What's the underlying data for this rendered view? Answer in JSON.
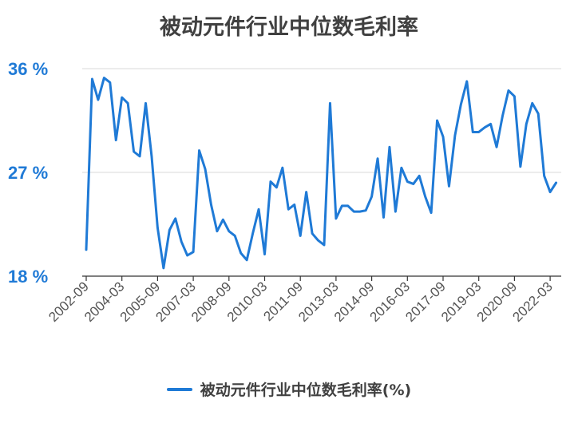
{
  "chart_data": {
    "type": "line",
    "title": "被动元件行业中位数毛利率",
    "ylim": [
      18,
      36
    ],
    "yticks": [
      "18 %",
      "27 %",
      "36 %"
    ],
    "ytick_values": [
      18,
      27,
      36
    ],
    "xticks": [
      "2002-09",
      "2004-03",
      "2005-09",
      "2007-03",
      "2008-09",
      "2010-03",
      "2011-09",
      "2013-03",
      "2014-09",
      "2016-03",
      "2017-09",
      "2019-03",
      "2020-09",
      "2022-03"
    ],
    "grid": "horizontal",
    "legend_position": "bottom",
    "series": [
      {
        "name": "被动元件行业中位数毛利率(%)",
        "color": "#1f7ad6",
        "values": [
          20.3,
          35.1,
          33.3,
          35.2,
          34.8,
          29.8,
          33.5,
          33.0,
          28.8,
          28.4,
          33.0,
          28.4,
          22.2,
          18.7,
          22.0,
          23.0,
          21.0,
          19.8,
          20.1,
          28.9,
          27.3,
          24.2,
          21.9,
          22.9,
          21.9,
          21.5,
          20.0,
          19.4,
          21.7,
          23.8,
          19.9,
          26.2,
          25.7,
          27.4,
          23.8,
          24.2,
          21.5,
          25.3,
          21.7,
          21.1,
          20.7,
          33.0,
          23.0,
          24.1,
          24.1,
          23.6,
          23.6,
          23.7,
          24.9,
          28.2,
          23.1,
          29.2,
          23.6,
          27.4,
          26.2,
          26.0,
          26.7,
          24.9,
          23.5,
          31.5,
          30.1,
          25.8,
          30.2,
          32.9,
          34.9,
          30.5,
          30.5,
          30.9,
          31.2,
          29.2,
          31.9,
          34.1,
          33.6,
          27.5,
          31.2,
          33.0,
          32.1,
          26.7,
          25.3,
          26.1
        ]
      }
    ]
  }
}
